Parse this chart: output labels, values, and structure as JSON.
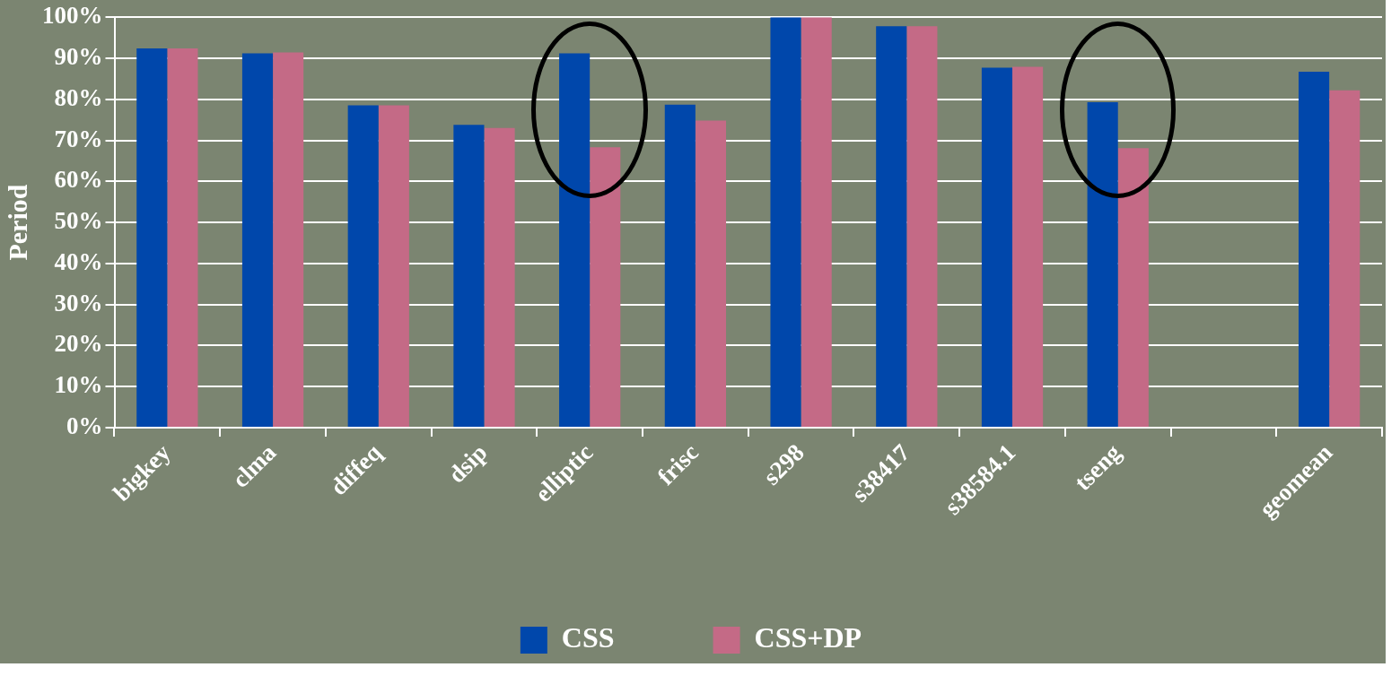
{
  "chart_data": {
    "type": "bar",
    "ylabel": "Period",
    "categories": [
      "bigkey",
      "clma",
      "diffeq",
      "dsip",
      "elliptic",
      "frisc",
      "s298",
      "s38417",
      "s38584.1",
      "tseng",
      null,
      "geomean"
    ],
    "series": [
      {
        "name": "CSS",
        "color": "#0047ab",
        "values": [
          92.4,
          91.2,
          78.5,
          73.8,
          91.2,
          78.7,
          100,
          97.8,
          87.7,
          79.3,
          null,
          86.7
        ]
      },
      {
        "name": "CSS+DP",
        "color": "#c46a86",
        "values": [
          92.4,
          91.4,
          78.5,
          73.0,
          68.3,
          74.8,
          100,
          97.8,
          87.9,
          68.1,
          null,
          82.2
        ]
      }
    ],
    "ylim": [
      0,
      100
    ],
    "yticks": [
      {
        "value": 0,
        "label": "0%"
      },
      {
        "value": 10,
        "label": "10%"
      },
      {
        "value": 20,
        "label": "20%"
      },
      {
        "value": 30,
        "label": "30%"
      },
      {
        "value": 40,
        "label": "40%"
      },
      {
        "value": 50,
        "label": "50%"
      },
      {
        "value": 60,
        "label": "60%"
      },
      {
        "value": 70,
        "label": "70%"
      },
      {
        "value": 80,
        "label": "80%"
      },
      {
        "value": 90,
        "label": "90%"
      },
      {
        "value": 100,
        "label": "100%"
      }
    ],
    "grid": "y",
    "legend": "bottom"
  }
}
